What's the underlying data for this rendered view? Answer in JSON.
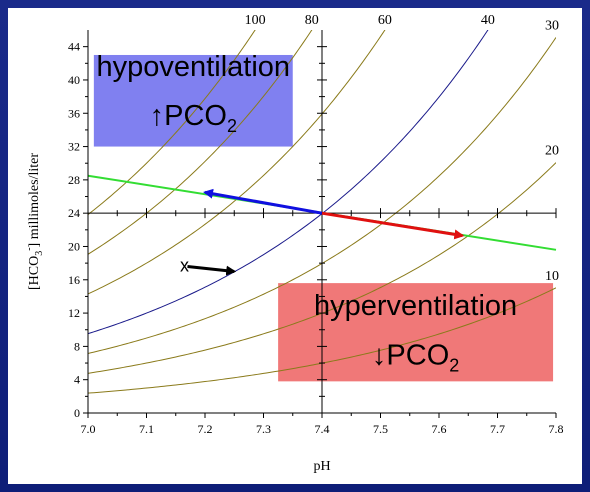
{
  "chart_data": {
    "type": "line",
    "xlabel": "pH",
    "ylabel": "[HCO3-] millimoles/liter",
    "ylabel_parts": {
      "pre": "[HCO",
      "sub": "3",
      "sup": "-",
      "post": "] millimoles/liter"
    },
    "xlim": [
      7.0,
      7.8
    ],
    "ylim": [
      0,
      46
    ],
    "x_ticks": [
      "7.0",
      "7.1",
      "7.2",
      "7.3",
      "7.4",
      "7.5",
      "7.6",
      "7.7",
      "7.8"
    ],
    "y_ticks": [
      "0",
      "4",
      "8",
      "12",
      "16",
      "20",
      "24",
      "28",
      "32",
      "36",
      "40",
      "44"
    ],
    "isopleths": [
      {
        "name": "10",
        "pco2": 10,
        "color": "#8a7a1a"
      },
      {
        "name": "20",
        "pco2": 20,
        "color": "#8a7a1a"
      },
      {
        "name": "30",
        "pco2": 30,
        "color": "#8a7a1a"
      },
      {
        "name": "40",
        "pco2": 40,
        "color": "#1a1a8a"
      },
      {
        "name": "60",
        "pco2": 60,
        "color": "#8a7a1a"
      },
      {
        "name": "80",
        "pco2": 80,
        "color": "#8a7a1a"
      },
      {
        "name": "100",
        "pco2": 100,
        "color": "#8a7a1a"
      }
    ],
    "buffer_line": {
      "points": [
        [
          7.0,
          28.5
        ],
        [
          7.8,
          19.6
        ]
      ],
      "color": "#33dd33"
    },
    "center_point": [
      7.4,
      24
    ],
    "arrows": [
      {
        "name": "hypoventilation-arrow",
        "from": [
          7.4,
          24
        ],
        "to": [
          7.2,
          26.5
        ],
        "color": "#1010e0"
      },
      {
        "name": "hyperventilation-arrow",
        "from": [
          7.4,
          24
        ],
        "to": [
          7.64,
          21.3
        ],
        "color": "#e01010"
      },
      {
        "name": "compensation-arrow",
        "from": [
          7.17,
          17.6
        ],
        "to": [
          7.25,
          17.0
        ],
        "color": "#000000"
      }
    ],
    "marker": {
      "text": "x",
      "at": [
        7.165,
        17.7
      ]
    },
    "annotations": {
      "hypoventilation": {
        "line1": "hypoventilation",
        "arrow": "↑",
        "pco": "PCO",
        "sub": "2",
        "color": "#8080f0"
      },
      "hyperventilation": {
        "line1": "hyperventilation",
        "arrow": "↓",
        "pco": "PCO",
        "sub": "2",
        "color": "#f07878"
      }
    },
    "grid": false
  }
}
